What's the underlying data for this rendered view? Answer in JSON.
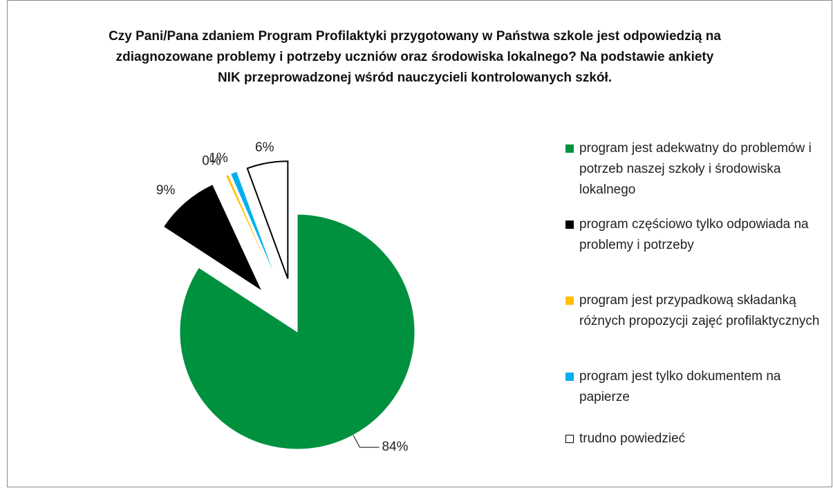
{
  "chart_data": {
    "type": "pie",
    "title": "Czy Pani/Pana zdaniem Program Profilaktyki przygotowany w Państwa szkole jest odpowiedzią na zdiagnozowane problemy i potrzeby uczniów oraz środowiska lokalnego? Na podstawie ankiety NIK przeprowadzonej wśród nauczycieli kontrolowanych szkół.",
    "categories": [
      "program jest adekwatny do problemów i potrzeb naszej szkoły i środowiska lokalnego",
      "program częściowo tylko odpowiada na problemy i potrzeby",
      "program jest przypadkową składanką różnych propozycji zajęć profilaktycznych",
      "program jest tylko dokumentem na papierze",
      "trudno powiedzieć"
    ],
    "values": [
      84.2,
      8.9,
      0.4,
      0.9,
      5.6
    ],
    "value_labels": [
      "84%",
      "9%",
      "0%",
      "1%",
      "6%"
    ],
    "colors": [
      "#00913f",
      "#000000",
      "#ffc000",
      "#00b0f0",
      "#ffffff"
    ],
    "legend": "right"
  }
}
